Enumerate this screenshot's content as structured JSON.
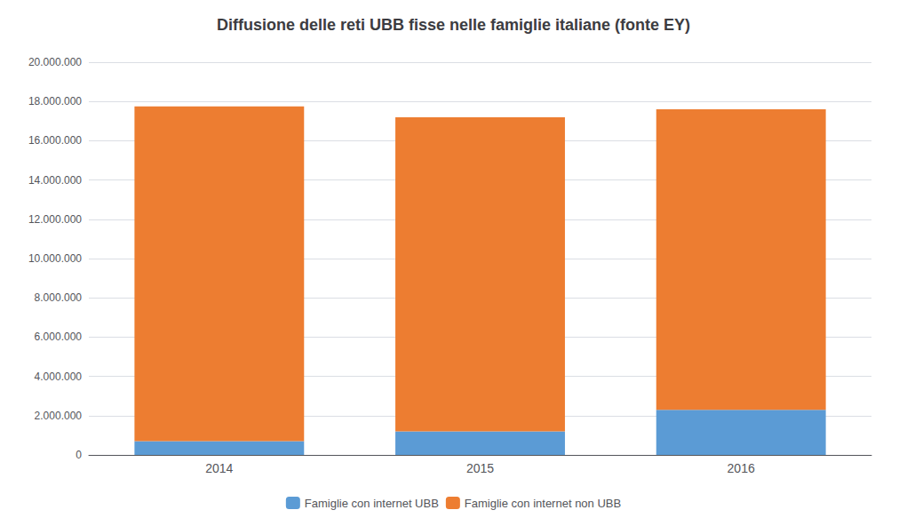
{
  "chart_data": {
    "type": "bar",
    "title": "Diffusione delle reti UBB fisse nelle famiglie italiane (fonte EY)",
    "categories": [
      "2014",
      "2015",
      "2016"
    ],
    "series": [
      {
        "name": "Famiglie con internet UBB",
        "color": "#5B9BD5",
        "values": [
          700000,
          1200000,
          2300000
        ]
      },
      {
        "name": "Famiglie con internet non UBB",
        "color": "#ED7D31",
        "values": [
          17050000,
          16000000,
          15300000
        ]
      }
    ],
    "stacked": true,
    "ylim": [
      0,
      20000000
    ],
    "yticks": [
      0,
      {
        "value": 2000000,
        "label": "2.000.000"
      },
      {
        "value": 4000000,
        "label": "4.000.000"
      },
      {
        "value": 6000000,
        "label": "6.000.000"
      },
      {
        "value": 8000000,
        "label": "8.000.000"
      },
      {
        "value": 10000000,
        "label": "10.000.000"
      },
      {
        "value": 12000000,
        "label": "12.000.000"
      },
      {
        "value": 14000000,
        "label": "14.000.000"
      },
      {
        "value": 16000000,
        "label": "16.000.000"
      },
      {
        "value": 18000000,
        "label": "18.000.000"
      },
      {
        "value": 20000000,
        "label": "20.000.000"
      }
    ],
    "grid": true,
    "legend": "bottom"
  }
}
